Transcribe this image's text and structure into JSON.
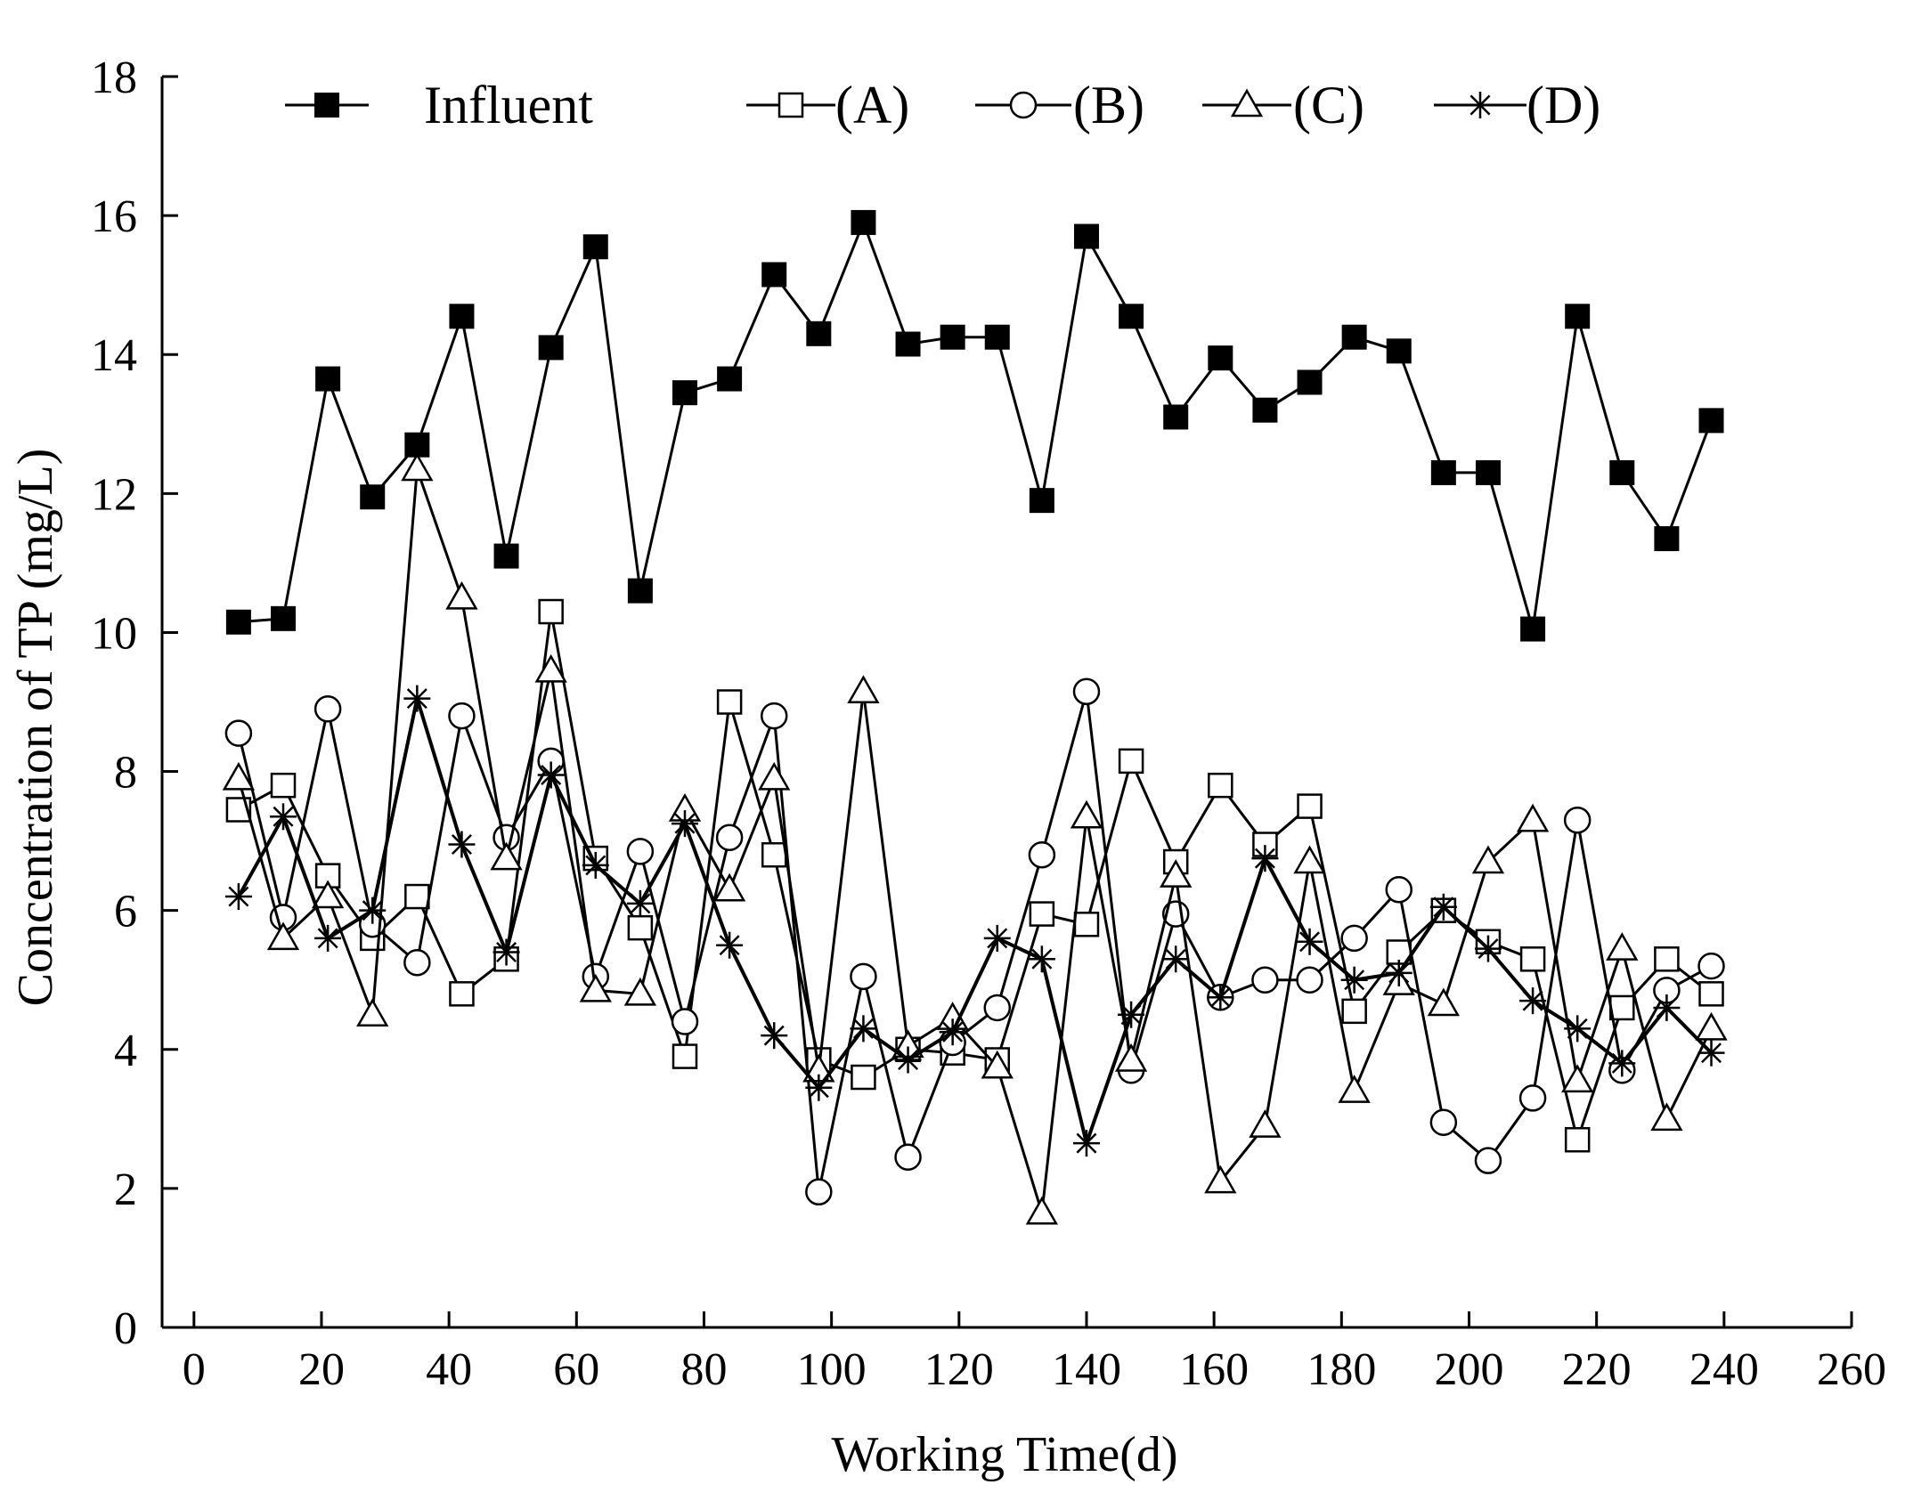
{
  "chart_data": {
    "type": "line",
    "title": "",
    "xlabel": "Working Time(d)",
    "ylabel": "Concentration of TP (mg/L)",
    "xlim": [
      -5,
      260
    ],
    "ylim": [
      0,
      18
    ],
    "xticks": [
      0,
      20,
      40,
      60,
      80,
      100,
      120,
      140,
      160,
      180,
      200,
      220,
      240,
      260
    ],
    "yticks": [
      0,
      2,
      4,
      6,
      8,
      10,
      12,
      14,
      16,
      18
    ],
    "grid": false,
    "legend_position": "top",
    "x": [
      7,
      14,
      21,
      28,
      35,
      42,
      49,
      56,
      63,
      70,
      77,
      84,
      91,
      98,
      105,
      112,
      119,
      126,
      133,
      140,
      147,
      154,
      161,
      168,
      175,
      182,
      189,
      196,
      203,
      210,
      217,
      224,
      231,
      238
    ],
    "series": [
      {
        "name": "Influent",
        "marker": "filled-square",
        "values": [
          10.15,
          10.2,
          13.65,
          11.95,
          12.7,
          14.55,
          11.1,
          14.1,
          15.55,
          10.6,
          13.45,
          13.65,
          15.15,
          14.3,
          15.9,
          14.15,
          14.25,
          14.25,
          11.9,
          15.7,
          14.55,
          13.1,
          13.95,
          13.2,
          13.6,
          14.25,
          14.05,
          12.3,
          12.3,
          10.05,
          14.55,
          12.3,
          11.35,
          13.05
        ]
      },
      {
        "name": "(A)",
        "marker": "open-square",
        "values": [
          7.45,
          7.8,
          6.5,
          5.6,
          6.2,
          4.8,
          5.3,
          10.3,
          6.75,
          5.75,
          3.9,
          9.0,
          6.8,
          3.85,
          3.6,
          4.0,
          3.95,
          3.85,
          5.95,
          5.8,
          8.15,
          6.7,
          7.8,
          6.95,
          7.5,
          4.55,
          5.4,
          6.0,
          5.55,
          5.3,
          2.7,
          4.6,
          5.3,
          4.8
        ]
      },
      {
        "name": "(B)",
        "marker": "open-circle",
        "values": [
          8.55,
          5.9,
          8.9,
          5.8,
          5.25,
          8.8,
          7.05,
          8.15,
          5.05,
          6.85,
          4.4,
          7.05,
          8.8,
          1.95,
          5.05,
          2.45,
          4.1,
          4.6,
          6.8,
          9.15,
          3.7,
          5.95,
          4.75,
          5.0,
          5.0,
          5.6,
          6.3,
          2.95,
          2.4,
          3.3,
          7.3,
          3.7,
          4.85,
          5.2
        ]
      },
      {
        "name": "(C)",
        "marker": "open-triangle",
        "values": [
          7.9,
          5.6,
          6.2,
          4.5,
          12.35,
          10.5,
          6.75,
          9.45,
          4.85,
          4.8,
          7.45,
          6.3,
          7.9,
          3.7,
          9.15,
          4.05,
          4.45,
          3.75,
          1.65,
          7.35,
          3.85,
          6.5,
          2.1,
          2.9,
          6.7,
          3.4,
          4.95,
          4.65,
          6.7,
          7.3,
          3.55,
          5.45,
          3.0,
          4.3
        ]
      },
      {
        "name": "(D)",
        "marker": "asterisk",
        "values": [
          6.2,
          7.35,
          5.6,
          6.0,
          9.05,
          6.95,
          5.4,
          7.95,
          6.65,
          6.1,
          7.25,
          5.5,
          4.2,
          3.45,
          4.3,
          3.85,
          4.25,
          5.6,
          5.3,
          2.65,
          4.5,
          5.3,
          4.75,
          6.75,
          5.55,
          5.0,
          5.1,
          6.05,
          5.45,
          4.7,
          4.3,
          3.8,
          4.6,
          3.95
        ]
      }
    ]
  }
}
